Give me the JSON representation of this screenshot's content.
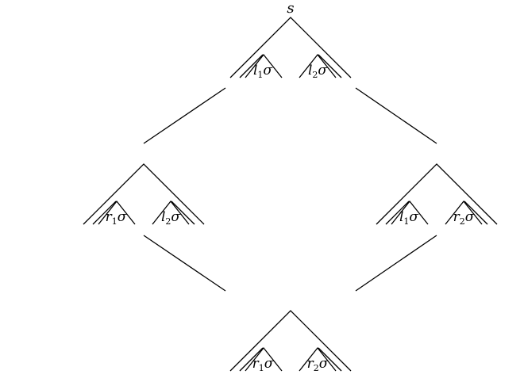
{
  "diagram": {
    "root_label": "s",
    "nodes": [
      {
        "id": "top",
        "show_root": true,
        "left": {
          "base": "l",
          "sub": "1",
          "tail": "σ"
        },
        "right": {
          "base": "l",
          "sub": "2",
          "tail": "σ"
        }
      },
      {
        "id": "left",
        "show_root": false,
        "left": {
          "base": "r",
          "sub": "1",
          "tail": "σ"
        },
        "right": {
          "base": "l",
          "sub": "2",
          "tail": "σ"
        }
      },
      {
        "id": "right",
        "show_root": false,
        "left": {
          "base": "l",
          "sub": "1",
          "tail": "σ"
        },
        "right": {
          "base": "r",
          "sub": "2",
          "tail": "σ"
        }
      },
      {
        "id": "bottom",
        "show_root": false,
        "left": {
          "base": "r",
          "sub": "1",
          "tail": "σ"
        },
        "right": {
          "base": "r",
          "sub": "2",
          "tail": "σ"
        }
      }
    ],
    "edges": [
      {
        "from": "top",
        "to": "left"
      },
      {
        "from": "top",
        "to": "right"
      },
      {
        "from": "left",
        "to": "bottom"
      },
      {
        "from": "right",
        "to": "bottom"
      }
    ]
  }
}
